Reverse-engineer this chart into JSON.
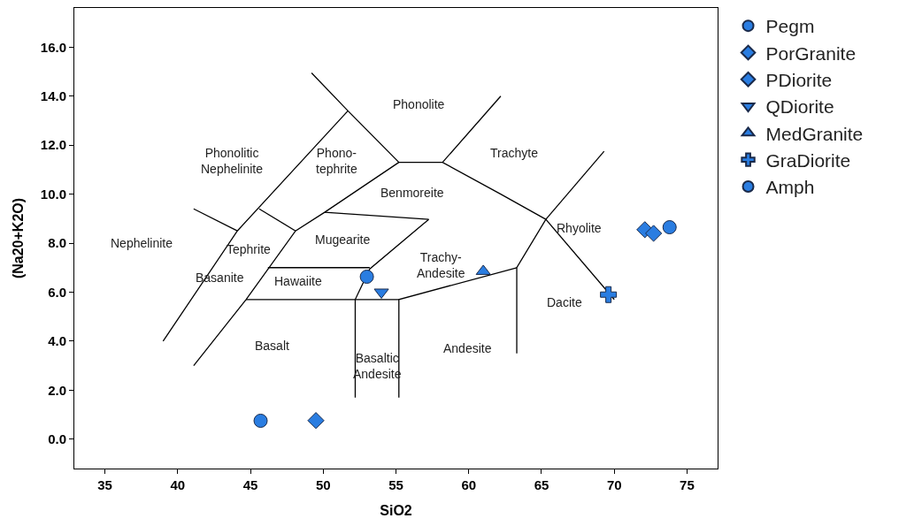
{
  "chart_data": {
    "type": "scatter",
    "xlabel": "SiO2",
    "ylabel": "(Na20+K2O)",
    "xlim": [
      32.9,
      77.1
    ],
    "ylim": [
      -1.2,
      17.6
    ],
    "xticks": [
      35,
      40,
      45,
      50,
      55,
      60,
      65,
      70,
      75
    ],
    "yticks": [
      {
        "value": 0,
        "label": "0.0"
      },
      {
        "value": 2,
        "label": "2.0"
      },
      {
        "value": 4,
        "label": "4.0"
      },
      {
        "value": 6,
        "label": "6.0"
      },
      {
        "value": 8,
        "label": "8.0"
      },
      {
        "value": 10,
        "label": "10.0"
      },
      {
        "value": 12,
        "label": "12.0"
      },
      {
        "value": 14,
        "label": "14.0"
      },
      {
        "value": 16,
        "label": "16.0"
      }
    ],
    "legend": "right",
    "series": [
      {
        "type": "line",
        "color": "#000000",
        "marker": "none",
        "x": [
          41.1,
          44.1,
          null,
          39.0,
          44.1,
          51.7,
          null,
          45.6,
          48.1,
          null,
          41.1,
          44.7,
          48.1,
          50.1,
          55.2,
          null,
          49.2,
          51.7,
          55.2,
          58.2,
          62.2,
          65.3,
          null,
          58.2,
          62.2,
          null,
          65.3,
          69.3,
          null,
          65.3,
          70.0,
          null,
          65.3,
          63.3,
          63.3,
          null,
          63.3,
          55.2,
          55.2,
          null,
          50.1,
          57.25,
          53.2,
          52.2,
          52.2,
          null,
          46.2,
          53.2,
          null,
          44.7,
          55.2
        ],
        "values": [
          9.4,
          8.5,
          null,
          4.0,
          8.5,
          13.4,
          null,
          9.4,
          8.5,
          null,
          3.0,
          5.7,
          8.5,
          9.26,
          11.3,
          null,
          14.95,
          13.4,
          11.3,
          11.3,
          10.0,
          8.97,
          null,
          11.3,
          14.0,
          null,
          8.97,
          11.75,
          null,
          8.97,
          5.7,
          null,
          8.97,
          7.0,
          3.5,
          null,
          7.0,
          5.7,
          1.7,
          null,
          9.26,
          8.97,
          6.95,
          5.7,
          1.7,
          null,
          7.0,
          7.0,
          null,
          5.7,
          5.7
        ]
      },
      {
        "name": "Pegm",
        "color": "#2a7de1",
        "marker": "circle",
        "x": [
          73.8
        ],
        "values": [
          8.65
        ]
      },
      {
        "name": "PorGranite",
        "color": "#2a7de1",
        "marker": "diamond",
        "x": [
          72.1,
          72.7
        ],
        "values": [
          8.55,
          8.4
        ]
      },
      {
        "name": "PDiorite",
        "color": "#2a7de1",
        "marker": "diamond",
        "x": [
          49.5
        ],
        "values": [
          0.76
        ]
      },
      {
        "name": "QDiorite",
        "color": "#2a7de1",
        "marker": "triangle-down",
        "x": [
          54.0
        ],
        "values": [
          6.0
        ]
      },
      {
        "name": "MedGranite",
        "color": "#2a7de1",
        "marker": "triangle",
        "x": [
          61.0
        ],
        "values": [
          6.85
        ]
      },
      {
        "name": "GraDiorite",
        "color": "#2a7de1",
        "marker": "cross",
        "x": [
          69.6
        ],
        "values": [
          5.9
        ]
      },
      {
        "name": "Amph",
        "color": "#2a7de1",
        "marker": "circle",
        "x": [
          53.0,
          45.7
        ],
        "values": [
          6.63,
          0.75
        ]
      }
    ],
    "annotations": [
      "Nephelinite",
      "Phonolitic\nNephelinite",
      "Phono-\ntephrite",
      "Phonolite",
      "Trachyte",
      "Benmoreite",
      "Mugearite",
      "Tephrite",
      "Trachy-\nAndesite",
      "Rhyolite",
      "Basanite",
      "Hawaiite",
      "Dacite",
      "Basalt",
      "Basaltic\nAndesite",
      "Andesite"
    ]
  }
}
